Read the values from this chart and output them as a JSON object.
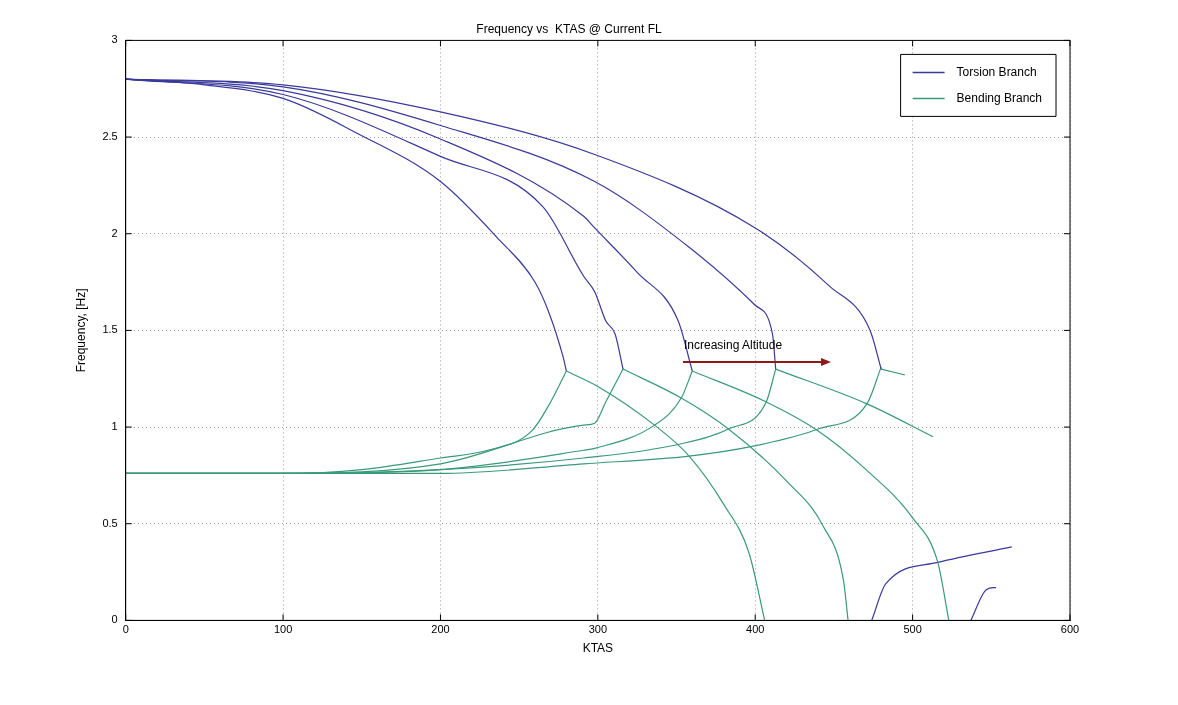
{
  "chart_data": {
    "type": "line",
    "title": "Frequency vs  KTAS @ Current FL",
    "xlabel": "KTAS",
    "ylabel": "Frequency, [Hz]",
    "xlim": [
      0,
      600
    ],
    "xticks": [
      0,
      100,
      200,
      300,
      400,
      500,
      600
    ],
    "ylim": [
      0,
      3
    ],
    "yticks": [
      0,
      0.5,
      1,
      1.5,
      2,
      2.5,
      3
    ],
    "grid": true,
    "legend": "top right",
    "annotations": [
      "Increasing Altitude"
    ],
    "series": [
      {
        "name": "Torsion Branch",
        "color": "#3a3a9c",
        "x": [
          0,
          50,
          100,
          147,
          200,
          236,
          260,
          269,
          278,
          280
        ],
        "values": [
          2.8,
          2.77,
          2.7,
          2.52,
          2.27,
          1.98,
          1.75,
          1.59,
          1.36,
          1.29
        ]
      },
      {
        "name": "Bending Branch",
        "color": "#3a9a78",
        "x": [
          0,
          100,
          150,
          200,
          230,
          258,
          270,
          280
        ],
        "values": [
          0.76,
          0.76,
          0.78,
          0.84,
          0.88,
          0.98,
          1.13,
          1.29
        ]
      },
      {
        "color": "#3a3a9c",
        "x": [
          0,
          100,
          200,
          265,
          291,
          298,
          305,
          311,
          316
        ],
        "values": [
          2.8,
          2.72,
          2.4,
          2.14,
          1.78,
          1.7,
          1.55,
          1.48,
          1.3
        ]
      },
      {
        "color": "#3a3a9c",
        "x": [
          0,
          100,
          200,
          291,
          298,
          325,
          351,
          360
        ],
        "values": [
          2.8,
          2.74,
          2.49,
          2.09,
          2.03,
          1.8,
          1.55,
          1.29
        ]
      },
      {
        "color": "#3a3a9c",
        "x": [
          0,
          100,
          200,
          298,
          358,
          400,
          411,
          413
        ],
        "values": [
          2.8,
          2.76,
          2.56,
          2.27,
          1.93,
          1.63,
          1.48,
          1.3
        ]
      },
      {
        "color": "#3a3a9c",
        "x": [
          0,
          100,
          200,
          298,
          400,
          447,
          473,
          480
        ],
        "values": [
          2.8,
          2.77,
          2.63,
          2.41,
          2.03,
          1.73,
          1.5,
          1.3
        ]
      },
      {
        "color": "#3a9a78",
        "x": [
          0,
          100,
          200,
          291,
          298,
          305,
          316
        ],
        "values": [
          0.76,
          0.76,
          0.81,
          1.01,
          1.02,
          1.13,
          1.3
        ]
      },
      {
        "color": "#3a9a78",
        "x": [
          0,
          100,
          200,
          291,
          298,
          336,
          353,
          360
        ],
        "values": [
          0.76,
          0.76,
          0.78,
          0.88,
          0.89,
          1.01,
          1.15,
          1.29
        ]
      },
      {
        "color": "#3a9a78",
        "x": [
          0,
          100,
          200,
          291,
          351,
          383,
          407,
          413
        ],
        "values": [
          0.76,
          0.76,
          0.78,
          0.84,
          0.91,
          0.99,
          1.13,
          1.3
        ]
      },
      {
        "color": "#3a9a78",
        "x": [
          0,
          100,
          200,
          291,
          358,
          398,
          440,
          471,
          480
        ],
        "values": [
          0.76,
          0.76,
          0.76,
          0.81,
          0.85,
          0.9,
          0.99,
          1.12,
          1.31
        ]
      },
      {
        "color": "#3a9a78",
        "x": [
          280,
          300,
          336,
          358,
          380,
          396,
          406
        ],
        "values": [
          1.29,
          1.21,
          1.01,
          0.85,
          0.6,
          0.35,
          0
        ]
      },
      {
        "color": "#3a9a78",
        "x": [
          316,
          353,
          383,
          420,
          443,
          456,
          459
        ],
        "values": [
          1.3,
          1.15,
          0.99,
          0.72,
          0.49,
          0.21,
          0
        ]
      },
      {
        "color": "#3a9a78",
        "x": [
          360,
          407,
          440,
          469,
          500,
          516,
          523
        ],
        "values": [
          1.29,
          1.13,
          0.98,
          0.79,
          0.53,
          0.3,
          0
        ]
      },
      {
        "color": "#3a9a78",
        "x": [
          413,
          471,
          513
        ],
        "values": [
          1.3,
          1.12,
          0.95
        ]
      },
      {
        "color": "#3a9a78",
        "x": [
          480,
          495
        ],
        "values": [
          1.3,
          1.27
        ]
      },
      {
        "color": "#3a3a9c",
        "x": [
          474,
          483,
          516,
          563
        ],
        "values": [
          0,
          0.19,
          0.3,
          0.38
        ]
      },
      {
        "color": "#3a3a9c",
        "x": [
          537,
          547,
          553
        ],
        "values": [
          0,
          0.16,
          0.17
        ]
      }
    ]
  }
}
